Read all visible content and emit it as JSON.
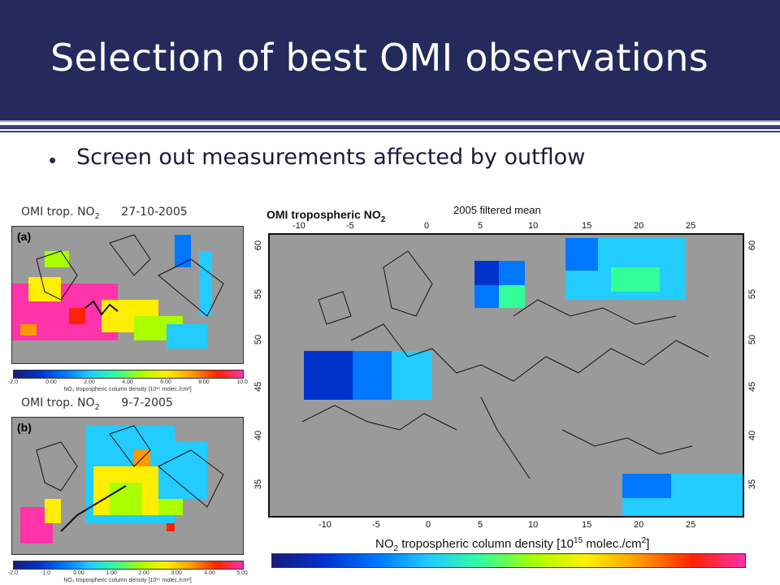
{
  "slide": {
    "title": "Selection of best OMI observations",
    "bullet": "Screen out measurements affected by outflow"
  },
  "colors": {
    "title_bar": "#252a5c",
    "map_background": "#9a9a9a",
    "colormap": [
      "#1a1a7a",
      "#0033cc",
      "#0077ff",
      "#22ccff",
      "#33ff99",
      "#aaff00",
      "#ffee00",
      "#ff9900",
      "#ff2200",
      "#ff33aa"
    ]
  },
  "small_maps": [
    {
      "label_prefix": "OMI trop. NO",
      "label_sub": "2",
      "date": "27-10-2005",
      "panel": "(a)",
      "colorbar_ticks": [
        "-2.0",
        "0.00",
        "2.00",
        "4.00",
        "6.00",
        "8.00",
        "10.0"
      ],
      "colorbar_caption": "NO₂ tropospheric column density [10¹⁵ molec./cm²]"
    },
    {
      "label_prefix": "OMI trop. NO",
      "label_sub": "2",
      "date": "9-7-2005",
      "panel": "(b)",
      "colorbar_ticks": [
        "-2.0",
        "-1.0",
        "0.00",
        "1.00",
        "2.00",
        "3.00",
        "4.00",
        "5.00"
      ],
      "colorbar_caption": "NO₂ tropospheric column density [10¹⁵ molec./cm²]"
    }
  ],
  "big_map": {
    "title_prefix": "OMI tropospheric NO",
    "title_sub": "2",
    "subtitle": "2005 filtered mean",
    "x_ticks": [
      "-10",
      "-5",
      "0",
      "5",
      "10",
      "15",
      "20",
      "25"
    ],
    "y_ticks": [
      "60",
      "55",
      "50",
      "45",
      "40",
      "35"
    ],
    "x_caption_prefix": "NO",
    "x_caption_sub": "2",
    "x_caption_mid": " tropospheric column density [10",
    "x_caption_sup": "15",
    "x_caption_end": " molec./cm",
    "x_caption_sup2": "2",
    "x_caption_close": "]"
  }
}
